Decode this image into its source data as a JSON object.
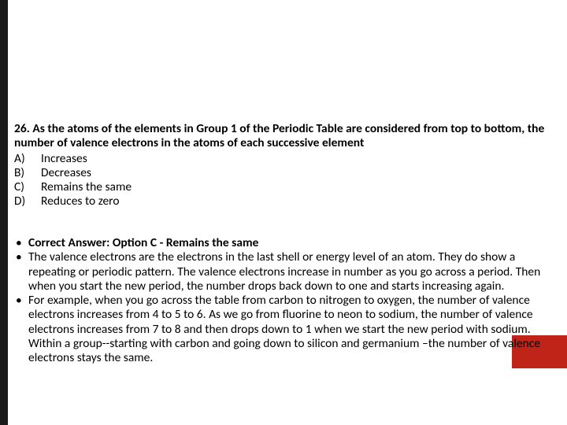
{
  "colors": {
    "leftBar": "#1a1a1a",
    "redBlock": "#c02418",
    "background": "#ffffff",
    "text": "#000000"
  },
  "question": {
    "number": "26.",
    "stem": "26. As the atoms of the elements in Group 1 of the Periodic Table are considered from top to bottom, the number of valence electrons in the atoms of each successive element",
    "choices": [
      {
        "letter": "A)",
        "text": "Increases"
      },
      {
        "letter": "B)",
        "text": "Decreases"
      },
      {
        "letter": "C)",
        "text": "Remains the same"
      },
      {
        "letter": "D)",
        "text": "Reduces to zero"
      }
    ]
  },
  "answerBullets": [
    {
      "bold": true,
      "text": "Correct Answer: Option C - Remains the same"
    },
    {
      "bold": false,
      "text": "The valence electrons are the electrons in the last shell or energy level of an atom. They do show a repeating or periodic pattern. The valence electrons increase in number as you go across a period. Then when you start the new period, the number drops back down to one and starts increasing again."
    },
    {
      "bold": false,
      "text": "For example, when you go across the table from carbon to nitrogen to oxygen, the number of valence electrons increases from 4 to 5 to 6. As we go from fluorine to neon to sodium, the number of valence electrons increases from 7 to 8 and then drops down to 1 when we start the new period with sodium. Within a group--starting with carbon and going down to silicon and germanium –the number of valence electrons stays the same."
    }
  ]
}
